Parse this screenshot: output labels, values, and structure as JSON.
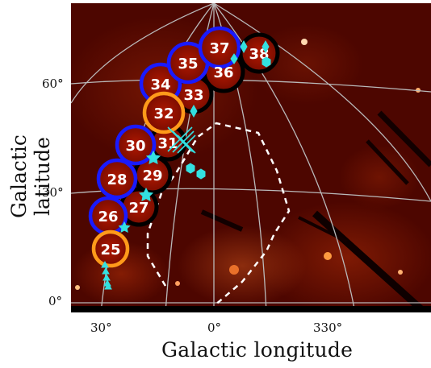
{
  "figure": {
    "xlabel": "Galactic longitude",
    "ylabel": "Galactic latitude",
    "x_ticks": [
      "30°",
      "0°",
      "330°"
    ],
    "y_ticks": [
      "60°",
      "30°",
      "0°"
    ]
  },
  "regions": [
    {
      "id": "25",
      "label": "25",
      "ring": "orange"
    },
    {
      "id": "26",
      "label": "26",
      "ring": "blue"
    },
    {
      "id": "27",
      "label": "27",
      "ring": "black"
    },
    {
      "id": "28",
      "label": "28",
      "ring": "blue"
    },
    {
      "id": "29",
      "label": "29",
      "ring": "black"
    },
    {
      "id": "30",
      "label": "30",
      "ring": "blue"
    },
    {
      "id": "31",
      "label": "31",
      "ring": "black"
    },
    {
      "id": "32",
      "label": "32",
      "ring": "orange"
    },
    {
      "id": "33",
      "label": "33",
      "ring": "black"
    },
    {
      "id": "34",
      "label": "34",
      "ring": "blue"
    },
    {
      "id": "35",
      "label": "35",
      "ring": "blue"
    },
    {
      "id": "36",
      "label": "36",
      "ring": "black"
    },
    {
      "id": "37",
      "label": "37",
      "ring": "blue"
    },
    {
      "id": "38",
      "label": "38",
      "ring": "black"
    }
  ],
  "colors": {
    "blue_ring": "#1a1aff",
    "orange_ring": "#ff9a1a",
    "black_ring": "#000000",
    "marker": "#33e0e0",
    "boundary": "#ffffff",
    "map_dark": "#2a0000",
    "map_mid": "#8a0e00",
    "map_bright": "#d84a10"
  }
}
